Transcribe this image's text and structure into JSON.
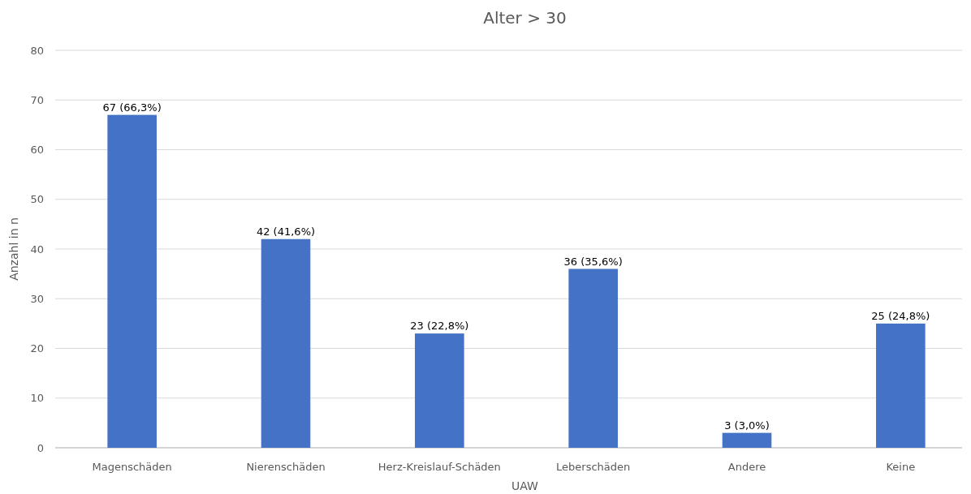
{
  "chart_data": {
    "type": "bar",
    "title": "Alter > 30",
    "xlabel": "UAW",
    "ylabel": "Anzahl in n",
    "categories": [
      "Magenschäden",
      "Nierenschäden",
      "Herz-Kreislauf-Schäden",
      "Leberschäden",
      "Andere",
      "Keine"
    ],
    "values": [
      67,
      42,
      23,
      36,
      3,
      25
    ],
    "value_labels": [
      "67 (66,3%)",
      "42 (41,6%)",
      "23 (22,8%)",
      "36 (35,6%)",
      "3 (3,0%)",
      "25 (24,8%)"
    ],
    "color": "#4472c4",
    "ylim": [
      0,
      80
    ],
    "yticks": [
      0,
      10,
      20,
      30,
      40,
      50,
      60,
      70,
      80
    ],
    "grid": "y"
  }
}
